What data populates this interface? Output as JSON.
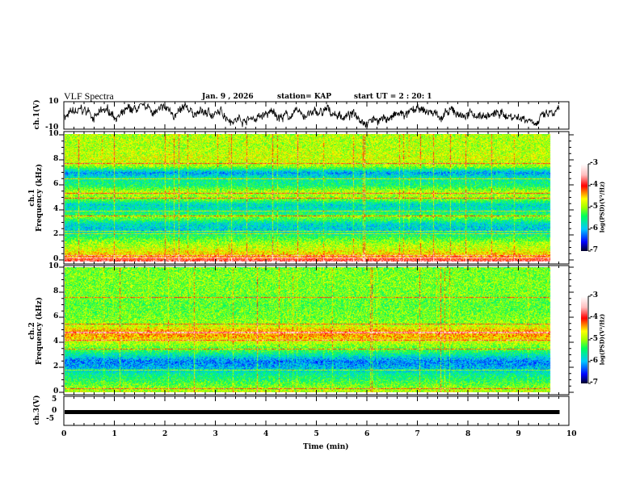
{
  "header": {
    "title": "VLF Spectra",
    "date": "Jan. 9 , 2026",
    "station": "station= KAP",
    "start": "start  UT =  2 : 20: 1"
  },
  "panels": {
    "ch1_wave": {
      "ylabel": "ch.1(V)",
      "ticks": [
        "10",
        "-10"
      ]
    },
    "ch1_spec": {
      "ylabel1": "ch.1",
      "ylabel2": "Frequency (kHz)",
      "ticks": [
        "10",
        "8",
        "6",
        "4",
        "2",
        "0"
      ]
    },
    "ch2_spec": {
      "ylabel1": "ch.2",
      "ylabel2": "Frequency (kHz)",
      "ticks": [
        "10",
        "8",
        "6",
        "4",
        "2",
        "0"
      ]
    },
    "ch3_wave": {
      "ylabel": "ch.3(V)",
      "ticks": [
        "5",
        "0",
        "-5"
      ]
    }
  },
  "colorbar": {
    "label": "log(PSD)(V²/Hz)",
    "ticks": [
      "-3",
      "-4",
      "-5",
      "-6",
      "-7"
    ],
    "colors": [
      "#000030",
      "#0000ff",
      "#00c0ff",
      "#00ff60",
      "#a0ff00",
      "#ffff00",
      "#ff8000",
      "#ff0000",
      "#ffc0c0",
      "#ffffff"
    ]
  },
  "xaxis": {
    "label": "Time (min)",
    "ticks": [
      "0",
      "1",
      "2",
      "3",
      "4",
      "5",
      "6",
      "7",
      "8",
      "9",
      "10"
    ]
  },
  "chart_data": [
    {
      "type": "line",
      "title": "ch.1 waveform",
      "ylabel": "ch.1(V)",
      "xlabel": "Time (min)",
      "xlim": [
        0,
        10
      ],
      "ylim": [
        -10,
        10
      ],
      "data_end_min": 9.8
    },
    {
      "type": "heatmap",
      "title": "ch.1 spectrogram",
      "ylabel": "Frequency (kHz)",
      "xlim": [
        0,
        10
      ],
      "ylim": [
        0,
        10
      ],
      "zlim": [
        -7,
        -3
      ],
      "mean_log_psd_profile": {
        "freq_khz": [
          0,
          0.5,
          1,
          1.5,
          2,
          2.5,
          3,
          3.5,
          4,
          4.5,
          5,
          5.5,
          6,
          6.5,
          7,
          7.5,
          8,
          9,
          10
        ],
        "log_psd": [
          -3.6,
          -4.5,
          -4.8,
          -5,
          -5.4,
          -5.9,
          -5.8,
          -5.1,
          -5.7,
          -5.8,
          -5.0,
          -4.9,
          -5.5,
          -5.6,
          -6.1,
          -5.0,
          -4.8,
          -4.9,
          -4.9
        ]
      }
    },
    {
      "type": "heatmap",
      "title": "ch.2 spectrogram",
      "ylabel": "Frequency (kHz)",
      "xlim": [
        0,
        10
      ],
      "ylim": [
        0,
        10
      ],
      "zlim": [
        -7,
        -3
      ],
      "mean_log_psd_profile": {
        "freq_khz": [
          0,
          0.5,
          1,
          1.5,
          2,
          2.5,
          3,
          3.5,
          4,
          4.5,
          5,
          5.5,
          6,
          7,
          8,
          9,
          10
        ],
        "log_psd": [
          -4.8,
          -5.1,
          -5.4,
          -5.6,
          -6.0,
          -6.2,
          -5.7,
          -5.2,
          -4.9,
          -4.4,
          -4.5,
          -5.0,
          -5.1,
          -5.2,
          -5.1,
          -5.1,
          -5.1
        ]
      }
    },
    {
      "type": "line",
      "title": "ch.3 waveform",
      "ylabel": "ch.3(V)",
      "xlim": [
        0,
        10
      ],
      "ylim": [
        -5,
        5
      ],
      "value": 0
    }
  ]
}
